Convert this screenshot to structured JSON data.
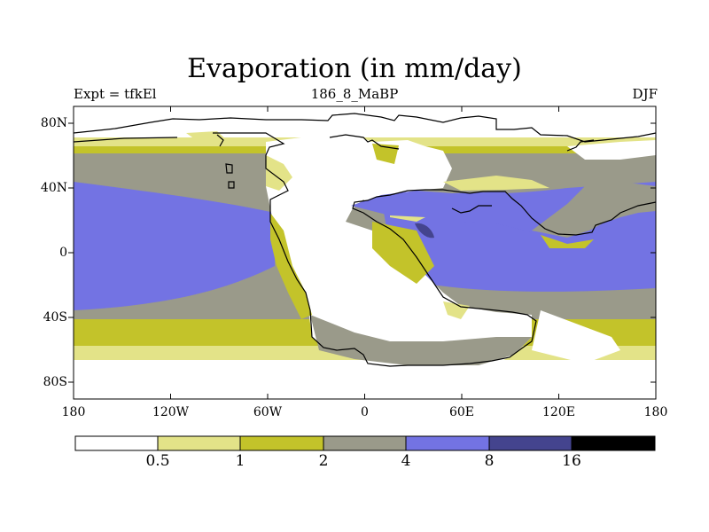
{
  "title": "Evaporation (in mm/day)",
  "left_label": "Expt = tfkEl",
  "center_label": "186_8_MaBP",
  "right_label": "DJF",
  "lat_ticks": [
    "80N",
    "40N",
    "0",
    "40S",
    "80S"
  ],
  "lon_ticks": [
    "180",
    "120W",
    "60W",
    "0",
    "60E",
    "120E",
    "180"
  ],
  "colorbar": {
    "levels": [
      "0.5",
      "1",
      "2",
      "4",
      "8",
      "16"
    ],
    "colors": [
      "#ffffff",
      "#e3e388",
      "#c3c32a",
      "#9a9a8a",
      "#7373e3",
      "#44448e",
      "#000000"
    ]
  }
}
